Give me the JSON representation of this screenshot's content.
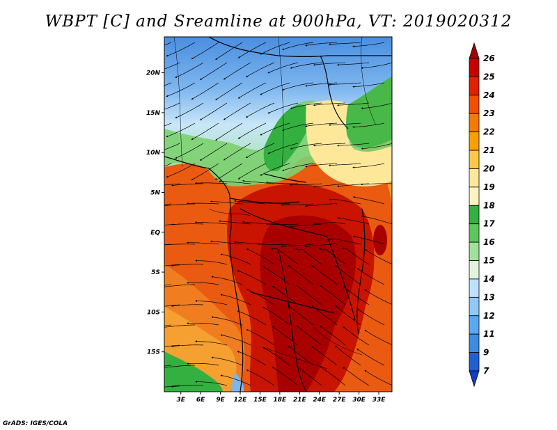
{
  "title": "WBPT [C] and Sreamline at 900hPa, VT: 2019020312",
  "credit": "GrADS: IGES/COLA",
  "map": {
    "lat_labels": [
      "20N",
      "15N",
      "10N",
      "5N",
      "EQ",
      "5S",
      "10S",
      "15S"
    ],
    "lat_values": [
      20,
      15,
      10,
      5,
      0,
      -5,
      -10,
      -15
    ],
    "lon_labels": [
      "3E",
      "6E",
      "9E",
      "12E",
      "15E",
      "18E",
      "21E",
      "24E",
      "27E",
      "30E",
      "33E"
    ],
    "lon_values": [
      3,
      6,
      9,
      12,
      15,
      18,
      21,
      24,
      27,
      30,
      33
    ],
    "lat_range": [
      -20,
      24.5
    ],
    "lon_range": [
      0.5,
      35
    ]
  },
  "colorbar": {
    "levels": [
      "26",
      "25",
      "24",
      "23",
      "22",
      "21",
      "20",
      "19",
      "18",
      "17",
      "16",
      "15",
      "14",
      "13",
      "12",
      "11",
      "9",
      "7"
    ],
    "colors": [
      "#a50000",
      "#c80000",
      "#e02200",
      "#f05000",
      "#f57a00",
      "#f8a000",
      "#fbc84a",
      "#fde79a",
      "#fdf3c0",
      "#33b040",
      "#5cc85c",
      "#a0e09a",
      "#e0f5e0",
      "#c0e0ff",
      "#90c8f8",
      "#5aa8f0",
      "#3c8ce0",
      "#2060d0",
      "#1040c0"
    ]
  }
}
